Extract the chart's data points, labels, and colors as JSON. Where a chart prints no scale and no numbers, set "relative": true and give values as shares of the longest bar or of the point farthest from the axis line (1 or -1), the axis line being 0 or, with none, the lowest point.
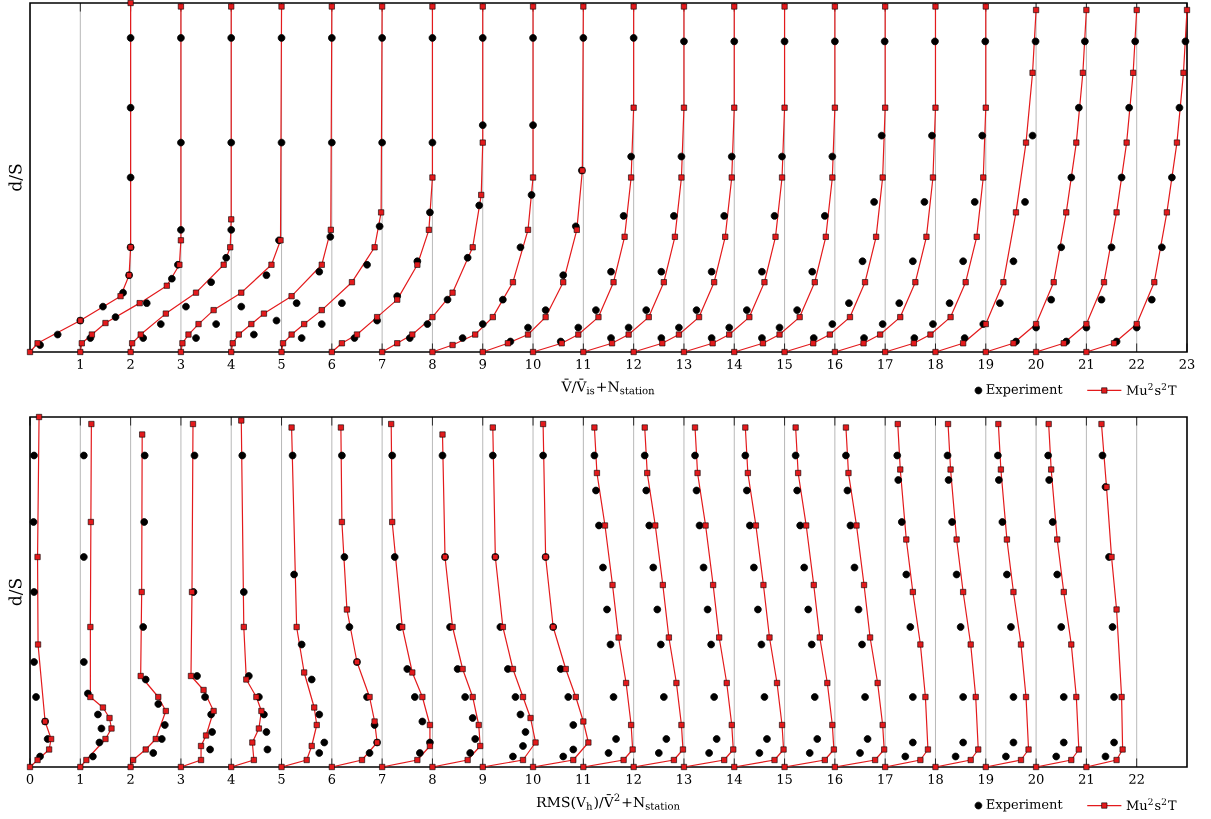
{
  "chart_data": [
    {
      "type": "scatter",
      "xlabel": "V̄/V̄$_{is}$+N$_{station}$",
      "ylabel": "d/S",
      "xlim": [
        0,
        23
      ],
      "xticks": [
        1,
        2,
        3,
        4,
        5,
        6,
        7,
        8,
        9,
        10,
        11,
        12,
        13,
        14,
        15,
        16,
        17,
        18,
        19,
        20,
        21,
        22,
        23
      ],
      "relative": true,
      "tick_labels": "x",
      "grid": "x",
      "legend": "bottom right",
      "series": [
        {
          "name": "Experiment",
          "color": "#000000",
          "marker": "circle",
          "x": [
            0.2,
            0.55,
            1.0,
            1.45,
            1.85,
            1.97,
            2.0,
            2.0,
            2.0,
            2.0,
            1.2,
            1.7,
            2.32,
            2.82,
            2.94,
            3.0,
            3.0,
            3.0,
            2.25,
            2.6,
            3.1,
            3.6,
            3.9,
            4.0,
            4.0,
            4.0,
            3.3,
            3.7,
            4.2,
            4.7,
            4.95,
            5.0,
            5.0,
            4.45,
            4.9,
            5.3,
            5.75,
            5.97,
            6.0,
            6.0,
            5.4,
            5.8,
            6.2,
            6.7,
            6.95,
            7.0,
            7.0,
            6.45,
            6.9,
            7.3,
            7.7,
            7.95,
            8.0,
            8.0,
            7.55,
            7.9,
            8.3,
            8.7,
            8.93,
            9.0,
            9.0,
            8.6,
            9.0,
            9.4,
            9.75,
            9.97,
            10.0,
            10.0,
            9.55,
            9.9,
            10.25,
            10.6,
            10.85,
            10.97,
            11.0,
            10.55,
            10.9,
            11.25,
            11.55,
            11.8,
            11.95,
            12.0,
            11.55,
            11.9,
            12.25,
            12.55,
            12.8,
            12.95,
            13.0,
            12.55,
            12.9,
            13.25,
            13.55,
            13.8,
            13.95,
            14.0,
            13.55,
            13.9,
            14.25,
            14.55,
            14.8,
            14.95,
            15.0,
            14.55,
            14.9,
            15.25,
            15.55,
            15.8,
            15.95,
            16.0,
            15.58,
            15.95,
            16.28,
            16.55,
            16.78,
            16.93,
            16.99,
            16.58,
            16.95,
            17.28,
            17.55,
            17.78,
            17.93,
            17.99,
            17.58,
            17.95,
            18.28,
            18.55,
            18.78,
            18.93,
            18.99,
            18.58,
            18.95,
            19.28,
            19.55,
            19.78,
            19.93,
            19.99,
            19.6,
            20.0,
            20.3,
            20.5,
            20.7,
            20.85,
            20.97,
            20.6,
            21.0,
            21.3,
            21.5,
            21.7,
            21.85,
            21.97,
            21.6,
            22.0,
            22.3,
            22.5,
            22.7,
            22.85,
            22.97
          ],
          "values": [
            0.02,
            0.05,
            0.09,
            0.13,
            0.17,
            0.22,
            0.3,
            0.5,
            0.7,
            0.9,
            0.04,
            0.1,
            0.14,
            0.21,
            0.25,
            0.35,
            0.6,
            0.9,
            0.04,
            0.08,
            0.13,
            0.2,
            0.27,
            0.35,
            0.6,
            0.9,
            0.04,
            0.08,
            0.13,
            0.22,
            0.32,
            0.6,
            0.9,
            0.05,
            0.09,
            0.14,
            0.23,
            0.33,
            0.6,
            0.9,
            0.04,
            0.08,
            0.14,
            0.25,
            0.36,
            0.6,
            0.9,
            0.04,
            0.09,
            0.16,
            0.26,
            0.4,
            0.6,
            0.9,
            0.04,
            0.08,
            0.15,
            0.27,
            0.42,
            0.65,
            0.9,
            0.04,
            0.08,
            0.15,
            0.3,
            0.45,
            0.65,
            0.9,
            0.03,
            0.07,
            0.12,
            0.22,
            0.36,
            0.52,
            0.9,
            0.03,
            0.07,
            0.12,
            0.23,
            0.39,
            0.56,
            0.9,
            0.04,
            0.07,
            0.12,
            0.23,
            0.39,
            0.56,
            0.89,
            0.04,
            0.07,
            0.12,
            0.23,
            0.39,
            0.56,
            0.89,
            0.04,
            0.07,
            0.12,
            0.23,
            0.39,
            0.56,
            0.89,
            0.04,
            0.07,
            0.12,
            0.23,
            0.39,
            0.56,
            0.89,
            0.04,
            0.08,
            0.14,
            0.26,
            0.43,
            0.62,
            0.89,
            0.04,
            0.08,
            0.14,
            0.26,
            0.43,
            0.62,
            0.89,
            0.04,
            0.08,
            0.14,
            0.26,
            0.43,
            0.62,
            0.89,
            0.04,
            0.08,
            0.14,
            0.26,
            0.43,
            0.62,
            0.89,
            0.03,
            0.07,
            0.15,
            0.3,
            0.5,
            0.7,
            0.89,
            0.03,
            0.07,
            0.15,
            0.3,
            0.5,
            0.7,
            0.89,
            0.03,
            0.07,
            0.15,
            0.3,
            0.5,
            0.7,
            0.89
          ]
        },
        {
          "name": "Mu$^{2}$s$^{2}$T",
          "type": "line",
          "color": "#e31a1c",
          "marker": "square",
          "line_style": "solid",
          "x": [
            0,
            0.15,
            1.0,
            1.8,
            1.97,
            2.0,
            2.0,
            null,
            1,
            1.03,
            1.23,
            1.5,
            2.18,
            2.72,
            2.97,
            3.0,
            3.0,
            null,
            2,
            2.03,
            2.2,
            2.7,
            3.3,
            3.85,
            3.98,
            4.0,
            4.0,
            null,
            3,
            3.03,
            3.15,
            3.35,
            3.65,
            4.2,
            4.8,
            4.98,
            5.0,
            null,
            4,
            4.03,
            4.15,
            4.4,
            4.65,
            5.2,
            5.8,
            5.98,
            6.0,
            null,
            5,
            5.03,
            5.2,
            5.45,
            5.8,
            6.4,
            6.85,
            6.98,
            7.0,
            null,
            6,
            6.2,
            6.5,
            6.9,
            7.3,
            7.7,
            7.93,
            8.0,
            8.0,
            null,
            7,
            7.3,
            7.6,
            8.0,
            8.4,
            8.8,
            8.97,
            9.0,
            9.0,
            null,
            8,
            8.4,
            8.85,
            9.2,
            9.6,
            9.9,
            10.0,
            10.0,
            null,
            9,
            9.5,
            9.9,
            10.25,
            10.6,
            10.87,
            10.98,
            11.0,
            null,
            10,
            10.57,
            10.9,
            11.3,
            11.6,
            11.82,
            11.95,
            12,
            12,
            null,
            11,
            11.57,
            11.9,
            12.3,
            12.6,
            12.82,
            12.95,
            13,
            13,
            null,
            12,
            12.57,
            12.9,
            13.3,
            13.6,
            13.82,
            13.95,
            14,
            14,
            null,
            13,
            13.57,
            13.9,
            14.3,
            14.6,
            14.82,
            14.95,
            15,
            15,
            null,
            14,
            14.57,
            14.9,
            15.3,
            15.6,
            15.82,
            15.95,
            16,
            16,
            null,
            15,
            15.57,
            15.9,
            16.3,
            16.6,
            16.82,
            16.95,
            17,
            17,
            null,
            16,
            16.57,
            16.9,
            17.3,
            17.6,
            17.82,
            17.95,
            18,
            18,
            null,
            17,
            17.57,
            17.9,
            18.3,
            18.6,
            18.82,
            18.95,
            19,
            19,
            null,
            18,
            18.55,
            19,
            19.35,
            19.6,
            19.8,
            19.93,
            20,
            null,
            19,
            19.55,
            20,
            20.35,
            20.6,
            20.8,
            20.93,
            21,
            null,
            20,
            20.55,
            21,
            21.35,
            21.6,
            21.8,
            21.93,
            22,
            null,
            21,
            21.55,
            22,
            22.35,
            22.6,
            22.8,
            22.93,
            23
          ],
          "values": [
            0,
            0.025,
            0.09,
            0.16,
            0.22,
            0.3,
            1,
            null,
            0,
            0.025,
            0.05,
            0.083,
            0.14,
            0.19,
            0.25,
            0.32,
            0.99,
            null,
            0,
            0.025,
            0.05,
            0.11,
            0.17,
            0.25,
            0.3,
            0.38,
            0.99,
            null,
            0,
            0.025,
            0.05,
            0.08,
            0.12,
            0.17,
            0.25,
            0.32,
            0.99,
            null,
            0,
            0.025,
            0.05,
            0.08,
            0.11,
            0.16,
            0.25,
            0.35,
            0.99,
            null,
            0,
            0.025,
            0.05,
            0.08,
            0.12,
            0.2,
            0.3,
            0.4,
            0.99,
            null,
            0,
            0.025,
            0.05,
            0.1,
            0.15,
            0.25,
            0.35,
            0.5,
            0.99,
            null,
            0,
            0.025,
            0.05,
            0.1,
            0.17,
            0.3,
            0.45,
            0.6,
            0.99,
            null,
            0,
            0.02,
            0.05,
            0.1,
            0.2,
            0.35,
            0.5,
            0.99,
            null,
            0,
            0.025,
            0.05,
            0.1,
            0.2,
            0.35,
            0.52,
            0.99,
            null,
            0,
            0.025,
            0.05,
            0.1,
            0.2,
            0.33,
            0.5,
            0.7,
            0.99,
            null,
            0,
            0.025,
            0.05,
            0.1,
            0.2,
            0.33,
            0.5,
            0.7,
            0.99,
            null,
            0,
            0.025,
            0.05,
            0.1,
            0.2,
            0.33,
            0.5,
            0.7,
            0.99,
            null,
            0,
            0.025,
            0.05,
            0.1,
            0.2,
            0.33,
            0.5,
            0.7,
            0.99,
            null,
            0,
            0.025,
            0.05,
            0.1,
            0.2,
            0.33,
            0.5,
            0.7,
            0.99,
            null,
            0,
            0.025,
            0.05,
            0.1,
            0.2,
            0.33,
            0.5,
            0.7,
            0.99,
            null,
            0,
            0.025,
            0.05,
            0.1,
            0.2,
            0.33,
            0.5,
            0.7,
            0.99,
            null,
            0,
            0.025,
            0.05,
            0.1,
            0.2,
            0.33,
            0.5,
            0.7,
            0.99,
            null,
            0,
            0.025,
            0.08,
            0.2,
            0.4,
            0.6,
            0.8,
            0.98,
            null,
            0,
            0.025,
            0.08,
            0.2,
            0.4,
            0.6,
            0.8,
            0.98,
            null,
            0,
            0.025,
            0.08,
            0.2,
            0.4,
            0.6,
            0.8,
            0.98,
            null,
            0,
            0.025,
            0.08,
            0.2,
            0.4,
            0.6,
            0.8,
            0.98
          ]
        }
      ]
    },
    {
      "type": "scatter",
      "xlabel": "RMS(V$_{h}$)/V̄$^{2}$+N$_{station}$",
      "ylabel": "d/S",
      "xlim": [
        0,
        23
      ],
      "xticks": [
        0,
        1,
        2,
        3,
        4,
        5,
        6,
        7,
        8,
        9,
        10,
        11,
        12,
        13,
        14,
        15,
        16,
        17,
        18,
        19,
        20,
        21,
        22
      ],
      "relative": true,
      "tick_labels": "x",
      "grid": "x",
      "legend": "bottom right",
      "series": [
        {
          "name": "Experiment",
          "color": "#000000",
          "marker": "circle",
          "x": [
            0.2,
            0.35,
            0.3,
            0.12,
            0.08,
            0.08,
            0.07,
            0.08,
            1.25,
            1.38,
            1.42,
            1.35,
            1.15,
            1.07,
            1.07,
            1.07,
            2.45,
            2.62,
            2.68,
            2.55,
            2.3,
            2.25,
            2.27,
            2.28,
            3.58,
            3.62,
            3.6,
            3.48,
            3.32,
            3.25,
            3.27,
            4.72,
            4.7,
            4.65,
            4.55,
            4.35,
            4.25,
            4.22,
            5.75,
            5.85,
            5.75,
            5.6,
            5.4,
            5.25,
            5.22,
            6.75,
            6.9,
            6.85,
            6.7,
            6.5,
            6.35,
            6.25,
            6.2,
            7.75,
            7.95,
            7.8,
            7.65,
            7.5,
            7.35,
            7.25,
            7.2,
            8.75,
            8.85,
            8.8,
            8.65,
            8.5,
            8.35,
            8.25,
            8.2,
            9.6,
            9.8,
            9.85,
            9.75,
            9.65,
            9.5,
            9.35,
            9.25,
            9.2,
            10.6,
            10.8,
            10.8,
            10.7,
            10.55,
            10.4,
            10.25,
            10.2,
            11.5,
            11.65,
            11.6,
            11.54,
            11.47,
            11.39,
            11.31,
            11.25,
            11.22,
            12.5,
            12.65,
            12.6,
            12.54,
            12.47,
            12.39,
            12.31,
            12.25,
            12.22,
            13.5,
            13.65,
            13.6,
            13.54,
            13.47,
            13.39,
            13.31,
            13.25,
            13.22,
            14.5,
            14.65,
            14.6,
            14.54,
            14.47,
            14.39,
            14.31,
            14.25,
            14.22,
            15.5,
            15.65,
            15.6,
            15.54,
            15.47,
            15.39,
            15.31,
            15.25,
            15.22,
            16.5,
            16.65,
            16.6,
            16.54,
            16.47,
            16.39,
            16.31,
            16.25,
            16.22,
            17.4,
            17.55,
            17.55,
            17.5,
            17.42,
            17.33,
            17.26,
            17.24,
            18.4,
            18.55,
            18.55,
            18.5,
            18.42,
            18.33,
            18.26,
            18.24,
            19.4,
            19.55,
            19.55,
            19.5,
            19.42,
            19.33,
            19.26,
            19.24,
            20.4,
            20.55,
            20.55,
            20.5,
            20.42,
            20.33,
            20.26,
            20.24,
            21.38,
            21.55,
            21.55,
            21.52,
            21.45,
            21.38,
            21.32
          ],
          "values": [
            0.03,
            0.08,
            0.13,
            0.2,
            0.3,
            0.5,
            0.7,
            0.89,
            0.03,
            0.07,
            0.11,
            0.15,
            0.21,
            0.3,
            0.6,
            0.89,
            0.04,
            0.08,
            0.12,
            0.18,
            0.25,
            0.4,
            0.7,
            0.89,
            0.05,
            0.1,
            0.15,
            0.2,
            0.26,
            0.5,
            0.89,
            0.05,
            0.1,
            0.15,
            0.2,
            0.26,
            0.5,
            0.89,
            0.04,
            0.07,
            0.15,
            0.25,
            0.35,
            0.55,
            0.89,
            0.04,
            0.07,
            0.12,
            0.2,
            0.3,
            0.4,
            0.6,
            0.89,
            0.04,
            0.07,
            0.13,
            0.2,
            0.28,
            0.4,
            0.6,
            0.89,
            0.04,
            0.08,
            0.14,
            0.2,
            0.28,
            0.4,
            0.6,
            0.89,
            0.03,
            0.06,
            0.1,
            0.15,
            0.2,
            0.28,
            0.4,
            0.6,
            0.89,
            0.03,
            0.05,
            0.12,
            0.2,
            0.28,
            0.4,
            0.6,
            0.89,
            0.04,
            0.08,
            0.2,
            0.35,
            0.45,
            0.57,
            0.69,
            0.79,
            0.89,
            0.04,
            0.08,
            0.2,
            0.35,
            0.45,
            0.57,
            0.69,
            0.79,
            0.89,
            0.04,
            0.08,
            0.2,
            0.35,
            0.45,
            0.57,
            0.69,
            0.79,
            0.89,
            0.04,
            0.08,
            0.2,
            0.35,
            0.45,
            0.57,
            0.69,
            0.79,
            0.89,
            0.04,
            0.08,
            0.2,
            0.35,
            0.45,
            0.57,
            0.69,
            0.79,
            0.89,
            0.04,
            0.08,
            0.2,
            0.35,
            0.45,
            0.57,
            0.69,
            0.79,
            0.89,
            0.03,
            0.07,
            0.2,
            0.4,
            0.55,
            0.7,
            0.82,
            0.89,
            0.03,
            0.07,
            0.2,
            0.4,
            0.55,
            0.7,
            0.82,
            0.89,
            0.03,
            0.07,
            0.2,
            0.4,
            0.55,
            0.7,
            0.82,
            0.89,
            0.03,
            0.07,
            0.2,
            0.4,
            0.55,
            0.7,
            0.82,
            0.89,
            0.03,
            0.07,
            0.2,
            0.4,
            0.6,
            0.8,
            0.89
          ]
        },
        {
          "name": "Mu$^{2}$s$^{2}$T",
          "type": "line",
          "color": "#e31a1c",
          "marker": "square",
          "line_style": "solid",
          "x": [
            0,
            0.15,
            0.38,
            0.42,
            0.3,
            0.16,
            0.15,
            0.18,
            null,
            1,
            1.12,
            1.5,
            1.62,
            1.58,
            1.45,
            1.2,
            1.2,
            1.21,
            1.22,
            null,
            2,
            2.05,
            2.3,
            2.5,
            2.7,
            2.55,
            2.2,
            2.22,
            2.23,
            null,
            3,
            3.4,
            3.4,
            3.5,
            3.65,
            3.45,
            3.2,
            3.22,
            3.24,
            null,
            4,
            4.45,
            4.42,
            4.55,
            4.6,
            4.5,
            4.3,
            4.25,
            4.2,
            null,
            5,
            5.5,
            5.6,
            5.7,
            5.65,
            5.45,
            5.3,
            5.2,
            null,
            6,
            6.6,
            6.9,
            6.85,
            6.75,
            6.5,
            6.3,
            6.2,
            6.18,
            null,
            7,
            7.7,
            7.95,
            7.95,
            7.8,
            7.6,
            7.4,
            7.2,
            7.18,
            null,
            8,
            8.7,
            8.95,
            8.92,
            8.8,
            8.6,
            8.4,
            8.25,
            8.2,
            null,
            9,
            9.8,
            10.05,
            9.95,
            9.8,
            9.6,
            9.4,
            9.25,
            9.2,
            null,
            10,
            10.8,
            11.1,
            11.0,
            10.85,
            10.65,
            10.4,
            10.25,
            10.2,
            null,
            11,
            11.8,
            11.98,
            11.95,
            11.85,
            11.7,
            11.58,
            11.43,
            11.27,
            11.22,
            null,
            12,
            12.8,
            12.98,
            12.95,
            12.85,
            12.7,
            12.58,
            12.43,
            12.27,
            12.22,
            null,
            13,
            13.8,
            13.98,
            13.95,
            13.85,
            13.7,
            13.58,
            13.43,
            13.27,
            13.22,
            null,
            14,
            14.8,
            14.98,
            14.95,
            14.85,
            14.7,
            14.58,
            14.43,
            14.27,
            14.22,
            null,
            15,
            15.8,
            15.98,
            15.95,
            15.85,
            15.7,
            15.58,
            15.43,
            15.27,
            15.22,
            null,
            16,
            16.8,
            16.98,
            16.95,
            16.85,
            16.7,
            16.58,
            16.43,
            16.27,
            16.22,
            null,
            17,
            17.7,
            17.85,
            17.8,
            17.7,
            17.55,
            17.42,
            17.3,
            17.25,
            null,
            18,
            18.7,
            18.85,
            18.8,
            18.7,
            18.55,
            18.42,
            18.3,
            18.25,
            null,
            19,
            19.7,
            19.85,
            19.8,
            19.7,
            19.55,
            19.42,
            19.3,
            19.25,
            null,
            20,
            20.7,
            20.85,
            20.8,
            20.7,
            20.55,
            20.42,
            20.3,
            20.25,
            null,
            21,
            21.6,
            21.72,
            21.7,
            21.6,
            21.5,
            21.4,
            21.3
          ],
          "values": [
            0,
            0.02,
            0.05,
            0.08,
            0.13,
            0.35,
            0.6,
            1,
            null,
            0,
            0.02,
            0.08,
            0.11,
            0.14,
            0.17,
            0.2,
            0.4,
            0.7,
            0.98,
            null,
            0,
            0.02,
            0.05,
            0.08,
            0.16,
            0.2,
            0.26,
            0.5,
            0.95,
            null,
            0,
            0.02,
            0.06,
            0.09,
            0.16,
            0.22,
            0.26,
            0.5,
            0.98,
            null,
            0,
            0.02,
            0.07,
            0.11,
            0.16,
            0.2,
            0.25,
            0.4,
            0.99,
            null,
            0,
            0.02,
            0.06,
            0.12,
            0.17,
            0.27,
            0.4,
            0.97,
            null,
            0,
            0.02,
            0.07,
            0.13,
            0.2,
            0.3,
            0.45,
            0.7,
            0.97,
            null,
            0,
            0.02,
            0.06,
            0.12,
            0.2,
            0.27,
            0.4,
            0.7,
            0.98,
            null,
            0,
            0.02,
            0.06,
            0.12,
            0.2,
            0.28,
            0.4,
            0.6,
            0.95,
            null,
            0,
            0.02,
            0.07,
            0.14,
            0.2,
            0.28,
            0.4,
            0.6,
            0.97,
            null,
            0,
            0.02,
            0.07,
            0.13,
            0.2,
            0.28,
            0.4,
            0.6,
            0.98,
            null,
            0,
            0.02,
            0.05,
            0.12,
            0.24,
            0.37,
            0.52,
            0.69,
            0.84,
            0.97,
            null,
            0,
            0.02,
            0.05,
            0.12,
            0.24,
            0.37,
            0.52,
            0.69,
            0.84,
            0.97,
            null,
            0,
            0.02,
            0.05,
            0.12,
            0.24,
            0.37,
            0.52,
            0.69,
            0.84,
            0.97,
            null,
            0,
            0.02,
            0.05,
            0.12,
            0.24,
            0.37,
            0.52,
            0.69,
            0.84,
            0.97,
            null,
            0,
            0.02,
            0.05,
            0.12,
            0.24,
            0.37,
            0.52,
            0.69,
            0.84,
            0.97,
            null,
            0,
            0.02,
            0.05,
            0.12,
            0.24,
            0.37,
            0.52,
            0.69,
            0.84,
            0.97,
            null,
            0,
            0.02,
            0.05,
            0.2,
            0.35,
            0.5,
            0.65,
            0.85,
            0.98,
            null,
            0,
            0.02,
            0.05,
            0.2,
            0.35,
            0.5,
            0.65,
            0.85,
            0.98,
            null,
            0,
            0.02,
            0.05,
            0.2,
            0.35,
            0.5,
            0.65,
            0.85,
            0.98,
            null,
            0,
            0.02,
            0.05,
            0.2,
            0.35,
            0.5,
            0.65,
            0.85,
            0.98,
            null,
            0,
            0.02,
            0.05,
            0.2,
            0.45,
            0.6,
            0.8,
            0.98
          ]
        }
      ]
    }
  ]
}
